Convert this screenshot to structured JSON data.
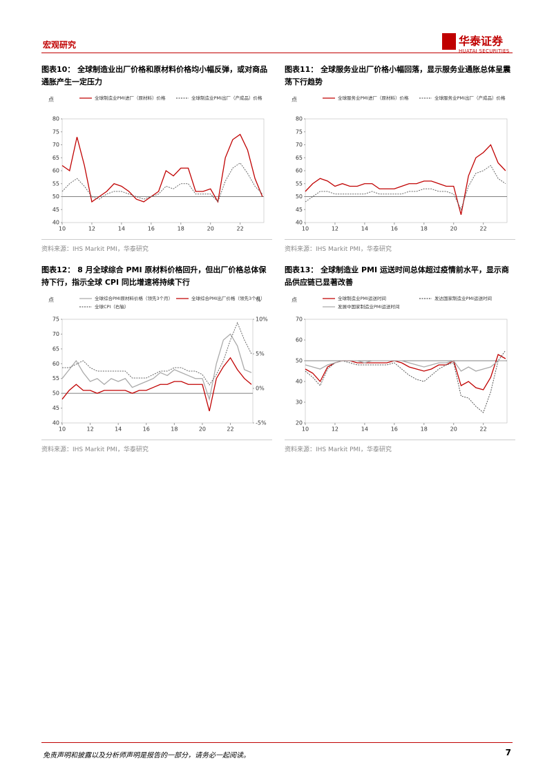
{
  "header": {
    "section": "宏观研究",
    "logo": "华泰证券",
    "logo_en": "HUATAI SECURITIES"
  },
  "chart_data": [
    {
      "type": "line",
      "title": "图表10：  全球制造业出厂价格和原材料价格均小幅反弹，或对商品通胀产生一定压力",
      "ylabel": "点",
      "source": "资料来源：IHS Markit PMI，华泰研究",
      "x": [
        10,
        10.5,
        11,
        11.5,
        12,
        12.5,
        13,
        13.5,
        14,
        14.5,
        15,
        15.5,
        16,
        16.5,
        17,
        17.5,
        18,
        18.5,
        19,
        19.5,
        20,
        20.5,
        21,
        21.5,
        22,
        22.5,
        23,
        23.5
      ],
      "xlim": [
        10,
        23.6
      ],
      "xticks": [
        10,
        12,
        14,
        16,
        18,
        20,
        22
      ],
      "ylim": [
        40,
        80
      ],
      "yticks": [
        40,
        45,
        50,
        55,
        60,
        65,
        70,
        75,
        80
      ],
      "hline": 50,
      "series": [
        {
          "name": "全球制造业PMI进厂（原材料）价格",
          "color": "#c00000",
          "style": "solid",
          "values": [
            62,
            60,
            73,
            62,
            48,
            50,
            52,
            55,
            54,
            52,
            49,
            48,
            50,
            52,
            60,
            58,
            61,
            61,
            52,
            52,
            53,
            48,
            65,
            72,
            74,
            68,
            57,
            50
          ]
        },
        {
          "name": "全球制造业PMI出厂（产成品）价格",
          "color": "#666666",
          "style": "dotted",
          "values": [
            52,
            55,
            57,
            54,
            50,
            49,
            51,
            52,
            52,
            51,
            50,
            49,
            50,
            51,
            54,
            53,
            55,
            55,
            51,
            51,
            51,
            48,
            56,
            61,
            63,
            59,
            54,
            51
          ]
        }
      ]
    },
    {
      "type": "line",
      "title": "图表11：  全球服务业出厂价格小幅回落，显示服务业通胀总体呈震荡下行趋势",
      "ylabel": "点",
      "source": "资料来源：IHS Markit PMI，华泰研究",
      "x": [
        10,
        10.5,
        11,
        11.5,
        12,
        12.5,
        13,
        13.5,
        14,
        14.5,
        15,
        15.5,
        16,
        16.5,
        17,
        17.5,
        18,
        18.5,
        19,
        19.5,
        20,
        20.5,
        21,
        21.5,
        22,
        22.5,
        23,
        23.5
      ],
      "xlim": [
        10,
        23.6
      ],
      "xticks": [
        10,
        12,
        14,
        16,
        18,
        20,
        22
      ],
      "ylim": [
        40,
        80
      ],
      "yticks": [
        40,
        45,
        50,
        55,
        60,
        65,
        70,
        75,
        80
      ],
      "hline": 50,
      "series": [
        {
          "name": "全球服务业PMI进厂（原材料）价格",
          "color": "#c00000",
          "style": "solid",
          "values": [
            52,
            55,
            57,
            56,
            54,
            55,
            54,
            54,
            55,
            55,
            53,
            53,
            53,
            54,
            55,
            55,
            56,
            56,
            55,
            54,
            54,
            43,
            58,
            65,
            67,
            70,
            63,
            60
          ]
        },
        {
          "name": "全球服务业PMI出厂（产成品）价格",
          "color": "#666666",
          "style": "dotted",
          "values": [
            48,
            50,
            52,
            52,
            51,
            51,
            51,
            51,
            51,
            52,
            51,
            51,
            51,
            51,
            52,
            52,
            53,
            53,
            52,
            52,
            51,
            45,
            54,
            59,
            60,
            62,
            57,
            55
          ]
        }
      ]
    },
    {
      "type": "line",
      "title": "图表12：  8 月全球综合 PMI 原材料价格回升，但出厂价格总体保持下行，指示全球 CPI 同比增速将持续下行",
      "ylabel": "点",
      "y2label": "%",
      "source": "资料来源：IHS Markit PMI，华泰研究",
      "x": [
        10,
        10.5,
        11,
        11.5,
        12,
        12.5,
        13,
        13.5,
        14,
        14.5,
        15,
        15.5,
        16,
        16.5,
        17,
        17.5,
        18,
        18.5,
        19,
        19.5,
        20,
        20.5,
        21,
        21.5,
        22,
        22.5,
        23,
        23.5
      ],
      "xlim": [
        10,
        23.6
      ],
      "xticks": [
        10,
        12,
        14,
        16,
        18,
        20,
        22
      ],
      "ylim": [
        40,
        75
      ],
      "yticks": [
        40,
        45,
        50,
        55,
        60,
        65,
        70,
        75
      ],
      "y2lim": [
        -5,
        10
      ],
      "y2ticks": [
        {
          "value": -5,
          "label": "-5%"
        },
        {
          "value": 0,
          "label": "0%"
        },
        {
          "value": 5,
          "label": "5%"
        },
        {
          "value": 10,
          "label": "10%"
        }
      ],
      "hline": 50,
      "series": [
        {
          "name": "全球综合PMI原材料价格（领先3个月）",
          "color": "#aaaaaa",
          "style": "solid",
          "values": [
            55,
            58,
            61,
            57,
            54,
            55,
            53,
            55,
            54,
            55,
            52,
            53,
            54,
            55,
            57,
            56,
            58,
            57,
            56,
            55,
            55,
            48,
            60,
            68,
            70,
            66,
            58,
            57
          ]
        },
        {
          "name": "全球综合PMI出厂价格（领先3个月）",
          "color": "#c00000",
          "style": "solid",
          "values": [
            48,
            51,
            53,
            51,
            51,
            50,
            51,
            51,
            51,
            51,
            50,
            51,
            51,
            52,
            53,
            53,
            54,
            54,
            53,
            53,
            53,
            44,
            55,
            59,
            62,
            58,
            55,
            53
          ]
        },
        {
          "name": "全球CPI（右轴）",
          "color": "#666666",
          "style": "dotted",
          "axis": "y2",
          "values": [
            3,
            3,
            3.5,
            4,
            3,
            2.5,
            2.5,
            2.5,
            2.5,
            2.5,
            1.5,
            1.5,
            1.5,
            2,
            2.5,
            2.5,
            3,
            3,
            2.5,
            2.5,
            2,
            0.5,
            2,
            4,
            7,
            9.5,
            7,
            5
          ]
        }
      ]
    },
    {
      "type": "line",
      "title": "图表13：  全球制造业 PMI 运送时间总体超过疫情前水平，显示商品供应链已显著改善",
      "ylabel": "点",
      "source": "资料来源：IHS Markit PMI，华泰研究",
      "x": [
        10,
        10.5,
        11,
        11.5,
        12,
        12.5,
        13,
        13.5,
        14,
        14.5,
        15,
        15.5,
        16,
        16.5,
        17,
        17.5,
        18,
        18.5,
        19,
        19.5,
        20,
        20.5,
        21,
        21.5,
        22,
        22.5,
        23,
        23.5
      ],
      "xlim": [
        10,
        23.6
      ],
      "xticks": [
        10,
        12,
        14,
        16,
        18,
        20,
        22
      ],
      "ylim": [
        20,
        70
      ],
      "yticks": [
        20,
        30,
        40,
        50,
        60,
        70
      ],
      "hline": 50,
      "series": [
        {
          "name": "全球制造业PMI运送时间",
          "color": "#c00000",
          "style": "solid",
          "values": [
            46,
            44,
            40,
            47,
            49,
            50,
            50,
            49,
            49,
            49,
            49,
            49,
            50,
            49,
            47,
            46,
            45,
            46,
            48,
            48,
            50,
            38,
            40,
            37,
            36,
            42,
            53,
            51
          ]
        },
        {
          "name": "发达国家制造业PMI运送时间",
          "color": "#555555",
          "style": "dotted",
          "values": [
            45,
            42,
            38,
            46,
            49,
            50,
            49,
            48,
            48,
            48,
            48,
            48,
            49,
            46,
            43,
            41,
            40,
            43,
            46,
            48,
            49,
            33,
            32,
            28,
            25,
            35,
            50,
            55
          ]
        },
        {
          "name": "发展中国家制造业PMI运送时间",
          "color": "#aaaaaa",
          "style": "solid",
          "values": [
            48,
            47,
            46,
            48,
            49,
            50,
            50,
            50,
            49,
            50,
            50,
            50,
            50,
            50,
            49,
            48,
            47,
            48,
            49,
            49,
            50,
            45,
            47,
            45,
            46,
            47,
            50,
            50
          ]
        }
      ]
    }
  ],
  "footer": {
    "disclaimer": "免责声明和披露以及分析师声明是报告的一部分，请务必一起阅读。",
    "page": "7"
  }
}
